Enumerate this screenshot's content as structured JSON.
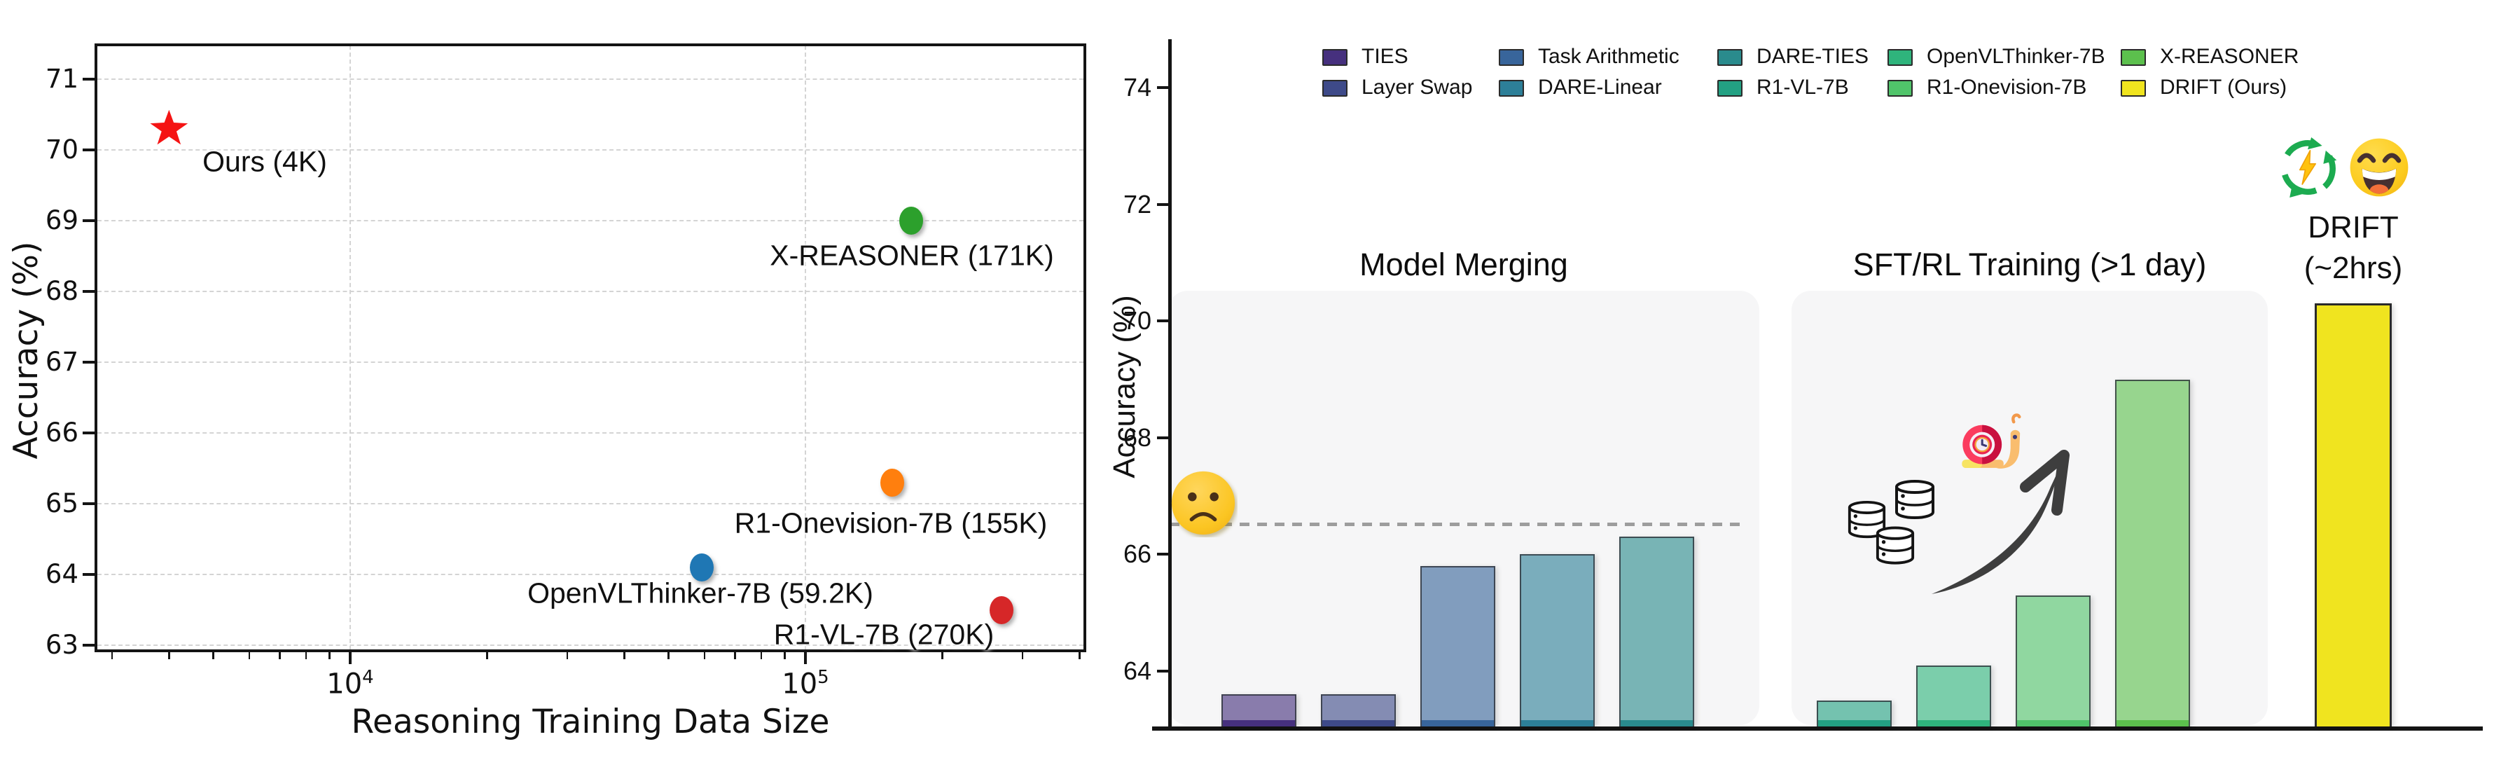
{
  "chart_data": [
    {
      "type": "scatter",
      "title": "",
      "xlabel": "Reasoning Training Data Size",
      "ylabel": "Accuracy (%)",
      "x_scale": "log",
      "xlim": [
        2740,
        414000
      ],
      "ylim": [
        62.9,
        71.5
      ],
      "grid": "dashed",
      "y_ticks": [
        63,
        64,
        65,
        66,
        67,
        68,
        69,
        70,
        71
      ],
      "x_ticks": [
        {
          "base": "10",
          "exp": "4",
          "value": 10000
        },
        {
          "base": "10",
          "exp": "5",
          "value": 100000
        }
      ],
      "points": [
        {
          "name": "ours",
          "label": "Ours  (4K)",
          "x": 4000,
          "y": 70.3,
          "color": "#f51414",
          "marker": "star",
          "label_cx": 378,
          "label_cy": 231
        },
        {
          "name": "x-reasoner",
          "label": "X-REASONER (171K)",
          "x": 171000,
          "y": 69.0,
          "color": "#2ca02c",
          "marker": "circle",
          "label_cx": 1302,
          "label_cy": 365
        },
        {
          "name": "r1-onevision",
          "label": "R1-Onevision-7B (155K)",
          "x": 155000,
          "y": 65.3,
          "color": "#ff7f0e",
          "marker": "circle",
          "label_cx": 1272,
          "label_cy": 747
        },
        {
          "name": "openvlthinker",
          "label": "OpenVLThinker-7B (59.2K)",
          "x": 59200,
          "y": 64.1,
          "color": "#1f77b4",
          "marker": "circle",
          "label_cx": 1000,
          "label_cy": 847
        },
        {
          "name": "r1-vl",
          "label": "R1-VL-7B (270K)",
          "x": 270000,
          "y": 63.5,
          "color": "#d62728",
          "marker": "circle",
          "label_cx": 1262,
          "label_cy": 906
        }
      ]
    },
    {
      "type": "bar",
      "ylabel": "Accuracy (%)",
      "ylim": [
        63,
        74.8
      ],
      "y_ticks": [
        64,
        66,
        68,
        70,
        72,
        74
      ],
      "baseline": {
        "value": 66.5,
        "style": "dashed"
      },
      "legend_position": "top",
      "legend": [
        {
          "label": "TIES",
          "color": "#46307e"
        },
        {
          "label": "Layer Swap",
          "color": "#3e4a89"
        },
        {
          "label": "Task Arithmetic",
          "color": "#38659b"
        },
        {
          "label": "DARE-Linear",
          "color": "#2d7f98"
        },
        {
          "label": "DARE-TIES",
          "color": "#2a8b8d"
        },
        {
          "label": "R1-VL-7B",
          "color": "#23a183"
        },
        {
          "label": "OpenVLThinker-7B",
          "color": "#2fb47c"
        },
        {
          "label": "R1-Onevision-7B",
          "color": "#50c46a"
        },
        {
          "label": "X-REASONER",
          "color": "#5cc04d"
        },
        {
          "label": "DRIFT (Ours)",
          "color": "#f0e41f"
        }
      ],
      "groups": [
        {
          "title": "Model Merging",
          "bars": [
            {
              "label": "TIES",
              "value": 63.6,
              "color": "#46307e"
            },
            {
              "label": "Layer Swap",
              "value": 63.6,
              "color": "#3e4a89"
            },
            {
              "label": "Task Arithmetic",
              "value": 65.8,
              "color": "#38659b"
            },
            {
              "label": "DARE-Linear",
              "value": 66.0,
              "color": "#2d7f98"
            },
            {
              "label": "DARE-TIES",
              "value": 66.3,
              "color": "#2a8b8d"
            }
          ]
        },
        {
          "title": "SFT/RL Training (>1 day)",
          "bars": [
            {
              "label": "R1-VL-7B",
              "value": 63.5,
              "color": "#23a183"
            },
            {
              "label": "OpenVLThinker-7B",
              "value": 64.1,
              "color": "#2fb47c"
            },
            {
              "label": "R1-Onevision-7B",
              "value": 65.3,
              "color": "#50c46a"
            },
            {
              "label": "X-REASONER",
              "value": 69.0,
              "color": "#5cc04d"
            }
          ]
        }
      ],
      "drift": {
        "label_line1": "DRIFT",
        "label_line2": "(~2hrs)",
        "value": 70.3,
        "color": "#f0e41f"
      },
      "annotations": [
        {
          "icon": "frustrated-face-emoji",
          "meaning": "baseline model frustration"
        },
        {
          "icon": "database-stack-icon",
          "meaning": "large training data"
        },
        {
          "icon": "snail-clock-emoji",
          "meaning": "slow training time"
        },
        {
          "icon": "growth-arrow-icon",
          "meaning": "accuracy increase"
        },
        {
          "icon": "energy-recycle-icon",
          "meaning": "efficient training"
        },
        {
          "icon": "laughing-face-emoji",
          "meaning": "DRIFT satisfaction"
        }
      ]
    }
  ]
}
